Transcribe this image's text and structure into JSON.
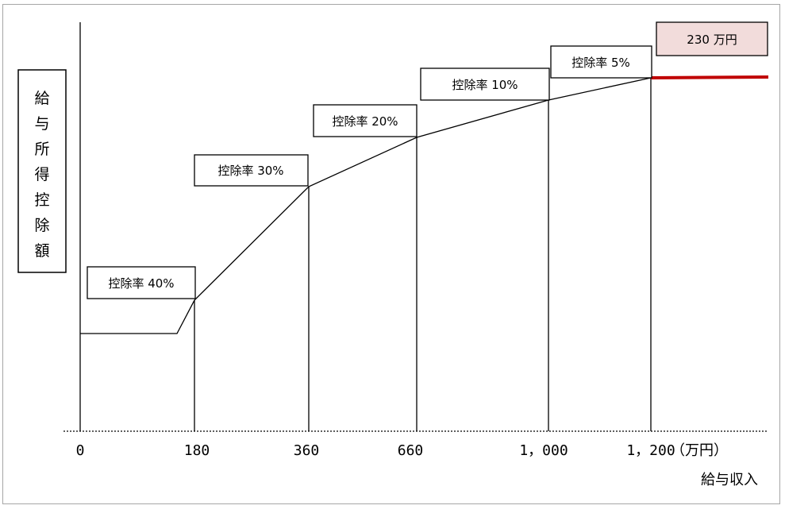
{
  "chart_data": {
    "type": "line",
    "xlabel": "給与収入",
    "ylabel": "給与所得控除額",
    "x_unit": "（万円）",
    "x_ticks": [
      "0",
      "180",
      "360",
      "660",
      "1，000",
      "1，200"
    ],
    "segments": [
      {
        "from": "0",
        "to": "180",
        "label": "控除率 40%"
      },
      {
        "from": "180",
        "to": "360",
        "label": "控除率 30%"
      },
      {
        "from": "360",
        "to": "660",
        "label": "控除率 20%"
      },
      {
        "from": "660",
        "to": "1，000",
        "label": "控除率 10%"
      },
      {
        "from": "1，000",
        "to": "1，200",
        "label": "控除率 5%"
      }
    ],
    "cap": {
      "from": "1，200",
      "label": "230 万円",
      "color": "#c00000",
      "box_color": "#f2dcdb"
    }
  }
}
